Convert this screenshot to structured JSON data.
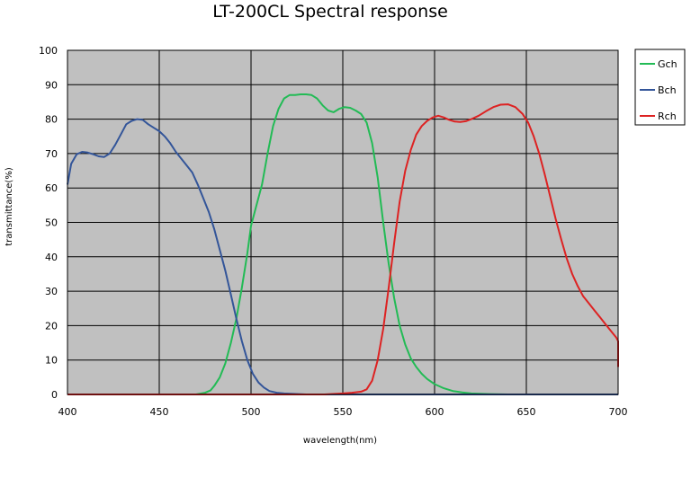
{
  "chart_data": {
    "type": "line",
    "title": "LT-200CL Spectral response",
    "xlabel": "wavelength(nm)",
    "ylabel": "transmittance(%)",
    "xlim": [
      400,
      700
    ],
    "ylim": [
      0,
      100
    ],
    "x_ticks": [
      400,
      450,
      500,
      550,
      600,
      650,
      700
    ],
    "y_ticks": [
      0,
      10,
      20,
      30,
      40,
      50,
      60,
      70,
      80,
      90,
      100
    ],
    "grid": true,
    "legend_position": "right",
    "plot_background": "#c0c0c0",
    "series": [
      {
        "name": "Gch",
        "color": "#22bb55",
        "x": [
          470,
          475,
          478,
          480,
          483,
          486,
          489,
          492,
          495,
          498,
          500,
          503,
          506,
          509,
          512,
          515,
          518,
          521,
          524,
          527,
          530,
          533,
          536,
          539,
          542,
          545,
          548,
          551,
          554,
          557,
          560,
          563,
          566,
          569,
          572,
          575,
          578,
          581,
          584,
          587,
          590,
          593,
          596,
          600,
          605,
          610,
          615,
          620,
          630,
          640,
          660,
          700
        ],
        "y": [
          0,
          0.5,
          1.2,
          2.5,
          5,
          9,
          15,
          22,
          31,
          41,
          49,
          55,
          61,
          70,
          78,
          83,
          86,
          87,
          87,
          87.2,
          87.2,
          87,
          86,
          84,
          82.5,
          82,
          83,
          83.5,
          83.3,
          82.5,
          81.5,
          79,
          73,
          63,
          50,
          38,
          28,
          20,
          14.5,
          10.5,
          8,
          6,
          4.5,
          3,
          1.8,
          1,
          0.6,
          0.3,
          0.1,
          0,
          0,
          0
        ]
      },
      {
        "name": "Bch",
        "color": "#335599",
        "x": [
          400,
          402,
          405,
          408,
          411,
          414,
          417,
          420,
          423,
          426,
          429,
          432,
          435,
          438,
          441,
          444,
          447,
          450,
          453,
          456,
          459,
          462,
          465,
          468,
          471,
          474,
          477,
          480,
          483,
          486,
          489,
          492,
          495,
          498,
          501,
          504,
          507,
          510,
          514,
          518,
          522,
          526,
          530,
          540,
          560,
          600,
          650,
          700
        ],
        "y": [
          61,
          67,
          69.8,
          70.5,
          70.3,
          69.8,
          69.2,
          69,
          70,
          72.5,
          75.5,
          78.5,
          79.5,
          80,
          79.8,
          78.5,
          77.5,
          76.5,
          75,
          73,
          70.5,
          68.5,
          66.5,
          64.5,
          61,
          57,
          53,
          48,
          42,
          36,
          29,
          22,
          15.5,
          10,
          6,
          3.5,
          2,
          1,
          0.5,
          0.3,
          0.2,
          0.1,
          0,
          0,
          0,
          0,
          0,
          0
        ]
      },
      {
        "name": "Rch",
        "color": "#dd2222",
        "x": [
          400,
          500,
          540,
          550,
          555,
          560,
          563,
          566,
          569,
          572,
          575,
          578,
          581,
          584,
          587,
          590,
          593,
          596,
          599,
          602,
          605,
          608,
          611,
          614,
          617,
          620,
          624,
          628,
          632,
          636,
          640,
          644,
          648,
          651,
          654,
          657,
          660,
          663,
          666,
          669,
          672,
          675,
          678,
          681,
          684,
          687,
          690,
          693,
          696,
          699,
          700,
          700
        ],
        "y": [
          0,
          0,
          0,
          0.3,
          0.5,
          0.8,
          1.5,
          4,
          10,
          19,
          31,
          44,
          56,
          65,
          71,
          75.5,
          78,
          79.5,
          80.5,
          81,
          80.5,
          79.8,
          79.3,
          79.2,
          79.4,
          80,
          81,
          82.3,
          83.5,
          84.2,
          84.3,
          83.5,
          81.5,
          79,
          75,
          70,
          64,
          57.5,
          51,
          45,
          39.5,
          35,
          31.5,
          28.5,
          26.5,
          24.5,
          22.5,
          20.5,
          18.5,
          16.5,
          15.5,
          8
        ]
      }
    ]
  }
}
